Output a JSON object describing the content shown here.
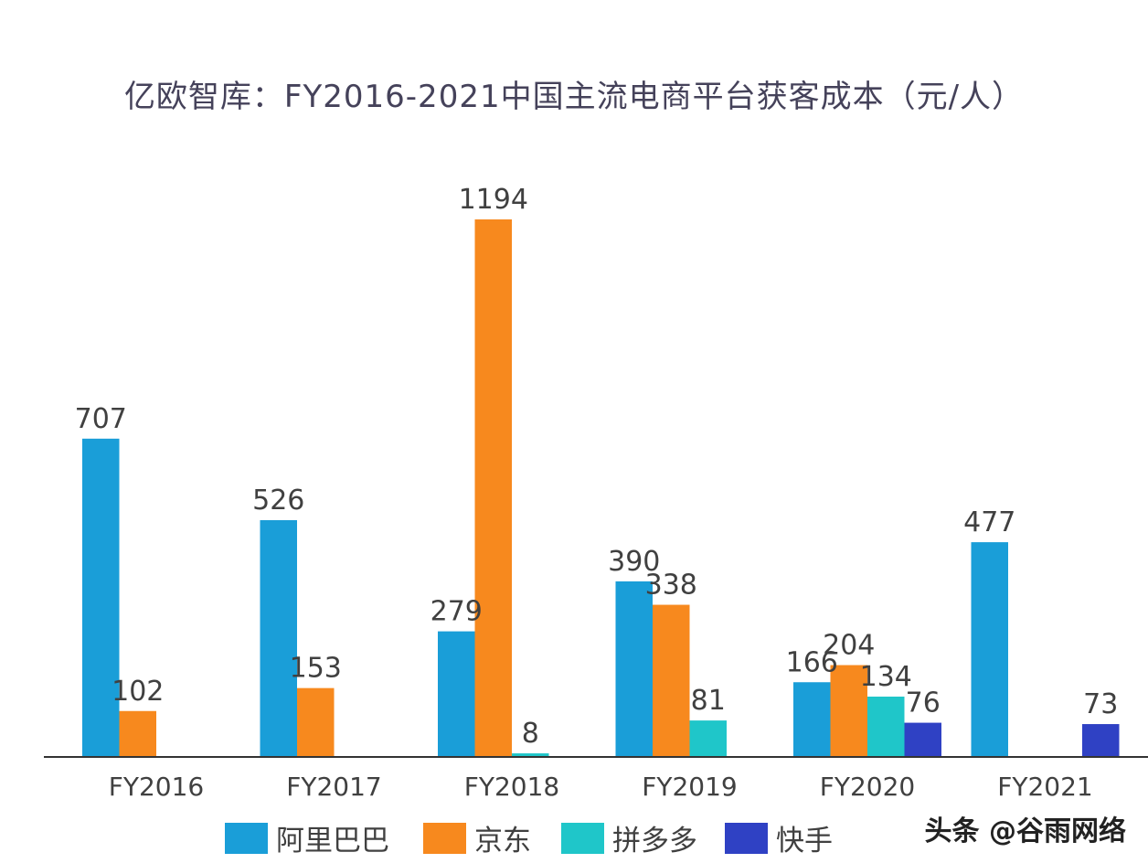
{
  "chart_data": {
    "type": "bar",
    "title": "亿欧智库：FY2016-2021中国主流电商平台获客成本（元/人）",
    "categories": [
      "FY2016",
      "FY2017",
      "FY2018",
      "FY2019",
      "FY2020",
      "FY2021"
    ],
    "series": [
      {
        "name": "阿里巴巴",
        "color": "#1a9ed8",
        "values": [
          707,
          526,
          279,
          390,
          166,
          477
        ]
      },
      {
        "name": "京东",
        "color": "#f7891e",
        "values": [
          102,
          153,
          1194,
          338,
          204,
          null
        ]
      },
      {
        "name": "拼多多",
        "color": "#1fc6c9",
        "values": [
          null,
          null,
          8,
          81,
          134,
          null
        ]
      },
      {
        "name": "快手",
        "color": "#2f41c4",
        "values": [
          null,
          null,
          null,
          null,
          76,
          73
        ]
      }
    ],
    "ylim": [
      0,
      1194
    ],
    "grid": false,
    "legend_position": "bottom"
  },
  "watermark": "头条 @谷雨网络"
}
